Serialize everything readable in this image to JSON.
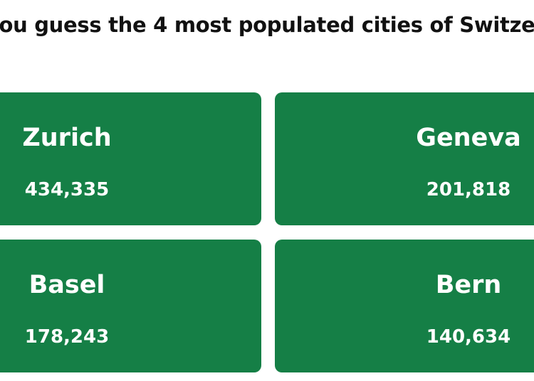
{
  "header": {
    "title": "ou guess the 4 most populated cities of Switze"
  },
  "cards": [
    {
      "city": "Zurich",
      "population": "434,335"
    },
    {
      "city": "Geneva",
      "population": "201,818"
    },
    {
      "city": "Basel",
      "population": "178,243"
    },
    {
      "city": "Bern",
      "population": "140,634"
    }
  ]
}
